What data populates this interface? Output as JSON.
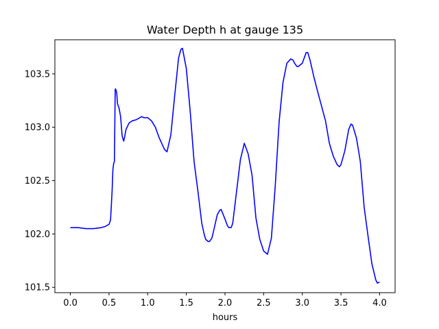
{
  "chart_data": {
    "type": "line",
    "title": "Water Depth h at gauge 135",
    "xlabel": "hours",
    "ylabel": "",
    "xlim": [
      -0.2,
      4.2
    ],
    "ylim": [
      101.45,
      103.82
    ],
    "xticks": [
      0.0,
      0.5,
      1.0,
      1.5,
      2.0,
      2.5,
      3.0,
      3.5,
      4.0
    ],
    "xtick_labels": [
      "0.0",
      "0.5",
      "1.0",
      "1.5",
      "2.0",
      "2.5",
      "3.0",
      "3.5",
      "4.0"
    ],
    "yticks": [
      101.5,
      102.0,
      102.5,
      103.0,
      103.5
    ],
    "ytick_labels": [
      "101.5",
      "102.0",
      "102.5",
      "103.0",
      "103.5"
    ],
    "grid": false,
    "series": [
      {
        "color": "#0000ff",
        "x": [
          0.0,
          0.1,
          0.2,
          0.25,
          0.3,
          0.4,
          0.45,
          0.5,
          0.52,
          0.54,
          0.55,
          0.56,
          0.57,
          0.58,
          0.583,
          0.59,
          0.6,
          0.61,
          0.62,
          0.63,
          0.65,
          0.67,
          0.69,
          0.7,
          0.72,
          0.74,
          0.76,
          0.78,
          0.8,
          0.85,
          0.9,
          0.92,
          0.95,
          0.97,
          1.0,
          1.05,
          1.1,
          1.15,
          1.2,
          1.22,
          1.25,
          1.3,
          1.35,
          1.4,
          1.43,
          1.45,
          1.5,
          1.55,
          1.6,
          1.65,
          1.7,
          1.73,
          1.75,
          1.78,
          1.8,
          1.83,
          1.85,
          1.9,
          1.93,
          1.95,
          2.0,
          2.03,
          2.05,
          2.08,
          2.1,
          2.15,
          2.2,
          2.25,
          2.3,
          2.35,
          2.4,
          2.45,
          2.5,
          2.55,
          2.6,
          2.65,
          2.7,
          2.75,
          2.8,
          2.85,
          2.88,
          2.9,
          2.93,
          2.95,
          3.0,
          3.05,
          3.07,
          3.1,
          3.15,
          3.2,
          3.3,
          3.35,
          3.4,
          3.45,
          3.48,
          3.5,
          3.55,
          3.6,
          3.63,
          3.65,
          3.7,
          3.75,
          3.8,
          3.85,
          3.9,
          3.95,
          3.97,
          4.0
        ],
        "y": [
          102.06,
          102.06,
          102.05,
          102.05,
          102.05,
          102.06,
          102.07,
          102.09,
          102.13,
          102.4,
          102.6,
          102.66,
          102.68,
          103.35,
          103.36,
          103.35,
          103.32,
          103.22,
          103.2,
          103.18,
          103.1,
          102.92,
          102.87,
          102.9,
          102.98,
          103.01,
          103.04,
          103.05,
          103.06,
          103.07,
          103.09,
          103.1,
          103.09,
          103.09,
          103.09,
          103.06,
          103.0,
          102.9,
          102.82,
          102.79,
          102.77,
          102.93,
          103.3,
          103.65,
          103.73,
          103.74,
          103.55,
          103.15,
          102.68,
          102.4,
          102.1,
          102.0,
          101.95,
          101.93,
          101.93,
          101.96,
          102.02,
          102.18,
          102.22,
          102.23,
          102.14,
          102.08,
          102.06,
          102.06,
          102.1,
          102.4,
          102.7,
          102.85,
          102.75,
          102.55,
          102.15,
          101.95,
          101.84,
          101.81,
          101.96,
          102.45,
          103.05,
          103.42,
          103.6,
          103.64,
          103.63,
          103.6,
          103.57,
          103.57,
          103.6,
          103.7,
          103.7,
          103.63,
          103.47,
          103.33,
          103.06,
          102.85,
          102.73,
          102.65,
          102.63,
          102.65,
          102.78,
          102.98,
          103.03,
          103.02,
          102.9,
          102.68,
          102.25,
          101.98,
          101.72,
          101.57,
          101.54,
          101.55
        ]
      }
    ]
  }
}
